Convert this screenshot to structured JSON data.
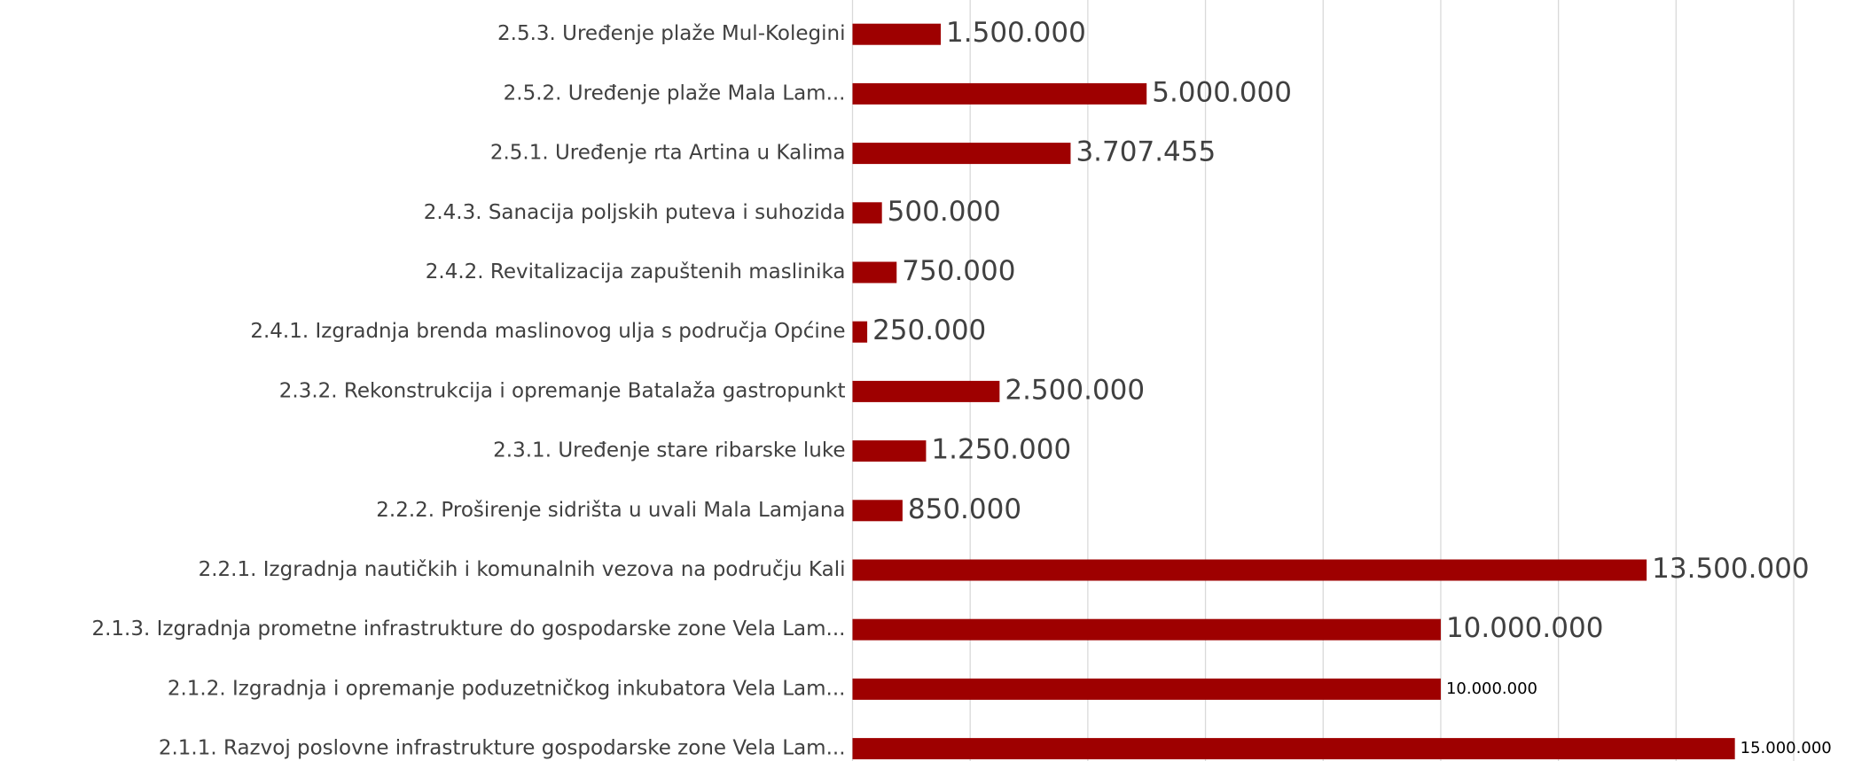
{
  "chart_data": {
    "type": "hbar",
    "categories": [
      "2.5.3. Uređenje plaže Mul-Kolegini",
      "2.5.2. Uređenje plaže Mala Lam...",
      "2.5.1. Uređenje rta Artina u Kalima",
      "2.4.3. Sanacija poljskih puteva i suhozida",
      "2.4.2. Revitalizacija zapuštenih maslinika",
      "2.4.1. Izgradnja brenda maslinovog ulja s područja Općine",
      "2.3.2. Rekonstrukcija i opremanje Batalaža gastropunkt",
      "2.3.1. Uređenje stare ribarske luke",
      "2.2.2. Proširenje sidrišta u uvali Mala Lamjana",
      "2.2.1. Izgradnja nautičkih i komunalnih  vezova na području Kali",
      "2.1.3. Izgradnja prometne infrastrukture do gospodarske zone Vela Lam...",
      "2.1.2. Izgradnja i opremanje poduzetničkog inkubatora Vela Lam...",
      "2.1.1. Razvoj poslovne infrastrukture gospodarske zone Vela Lam..."
    ],
    "values": [
      1500000,
      5000000,
      3707455,
      500000,
      750000,
      250000,
      2500000,
      1250000,
      850000,
      13500000,
      10000000,
      10000000,
      15000000
    ],
    "value_labels": [
      "1.500.000",
      "5.000.000",
      "3.707.455",
      "500.000",
      "750.000",
      "250.000",
      "2.500.000",
      "1.250.000",
      "850.000",
      "13.500.000",
      "10.000.000",
      "10.000.000",
      "15.000.000"
    ],
    "color": "#9e0000",
    "xlim": [
      0,
      16000000
    ],
    "xticks": [
      0,
      2000000,
      4000000,
      6000000,
      8000000,
      10000000,
      12000000,
      14000000,
      16000000
    ],
    "grid": true
  }
}
